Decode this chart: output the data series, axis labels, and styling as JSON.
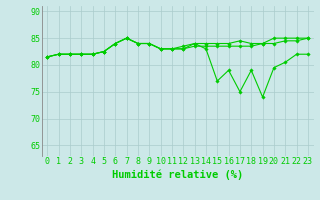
{
  "x": [
    0,
    1,
    2,
    3,
    4,
    5,
    6,
    7,
    8,
    9,
    10,
    11,
    12,
    13,
    14,
    15,
    16,
    17,
    18,
    19,
    20,
    21,
    22,
    23
  ],
  "y_main": [
    81.5,
    82,
    82,
    82,
    82,
    82.5,
    84,
    85,
    84,
    84,
    83,
    83,
    83,
    84,
    83,
    77,
    79,
    75,
    79,
    74,
    79.5,
    80.5,
    82,
    82
  ],
  "y_upper": [
    81.5,
    82,
    82,
    82,
    82,
    82.5,
    84,
    85,
    84,
    84,
    83,
    83,
    83.5,
    84,
    84,
    84,
    84,
    84.5,
    84,
    84,
    85,
    85,
    85,
    85
  ],
  "y_lower": [
    81.5,
    82,
    82,
    82,
    82,
    82.5,
    84,
    85,
    84,
    84,
    83,
    83,
    83,
    83.5,
    83.5,
    83.5,
    83.5,
    83.5,
    83.5,
    84,
    84,
    84.5,
    84.5,
    85
  ],
  "line_color": "#00cc00",
  "bg_color": "#cce8e8",
  "grid_color": "#aacccc",
  "ylim": [
    63,
    91
  ],
  "yticks": [
    65,
    70,
    75,
    80,
    85,
    90
  ],
  "xlabel": "Humidité relative (%)",
  "tick_fontsize": 6,
  "xlabel_fontsize": 7.5
}
